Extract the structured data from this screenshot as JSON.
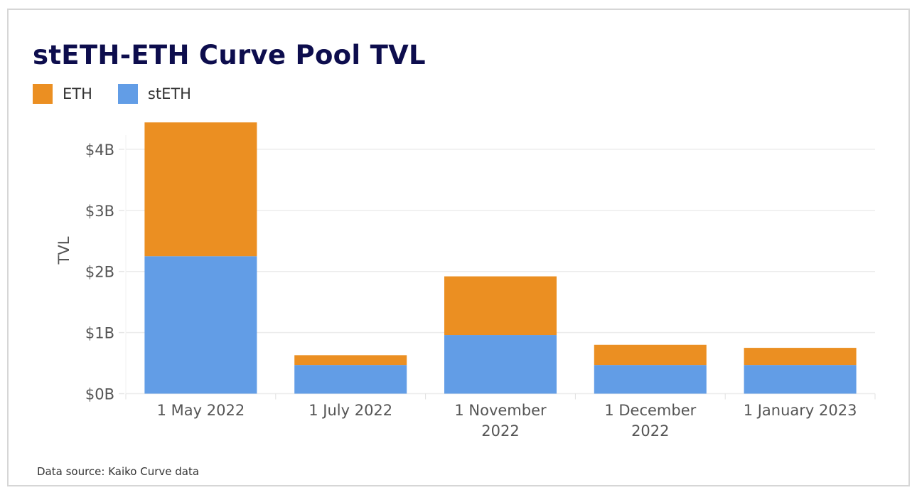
{
  "chart_data": {
    "type": "bar",
    "stacked": true,
    "title": "stETH-ETH Curve Pool TVL",
    "xlabel": "",
    "ylabel": "TVL",
    "categories": [
      "1 May 2022",
      "1 July 2022",
      "1 November 2022",
      "1 December 2022",
      "1 January 2023"
    ],
    "category_lines": [
      [
        "1 May 2022"
      ],
      [
        "1 July 2022"
      ],
      [
        "1 November",
        "2022"
      ],
      [
        "1 December",
        "2022"
      ],
      [
        "1 January 2023"
      ]
    ],
    "series": [
      {
        "name": "stETH",
        "color": "#629de6",
        "values": [
          2.25,
          0.47,
          0.96,
          0.47,
          0.47
        ]
      },
      {
        "name": "ETH",
        "color": "#eb8f22",
        "values": [
          2.19,
          0.16,
          0.96,
          0.33,
          0.28
        ]
      }
    ],
    "legend_order": [
      "ETH",
      "stETH"
    ],
    "yunit": "B",
    "ylim": [
      0,
      4.5
    ],
    "yticks": [
      0,
      1,
      2,
      3,
      4
    ],
    "ytick_labels": [
      "$0B",
      "$1B",
      "$2B",
      "$3B",
      "$4B"
    ],
    "grid": true,
    "legend_position": "top-left",
    "source": "Data source: Kaiko Curve data"
  }
}
